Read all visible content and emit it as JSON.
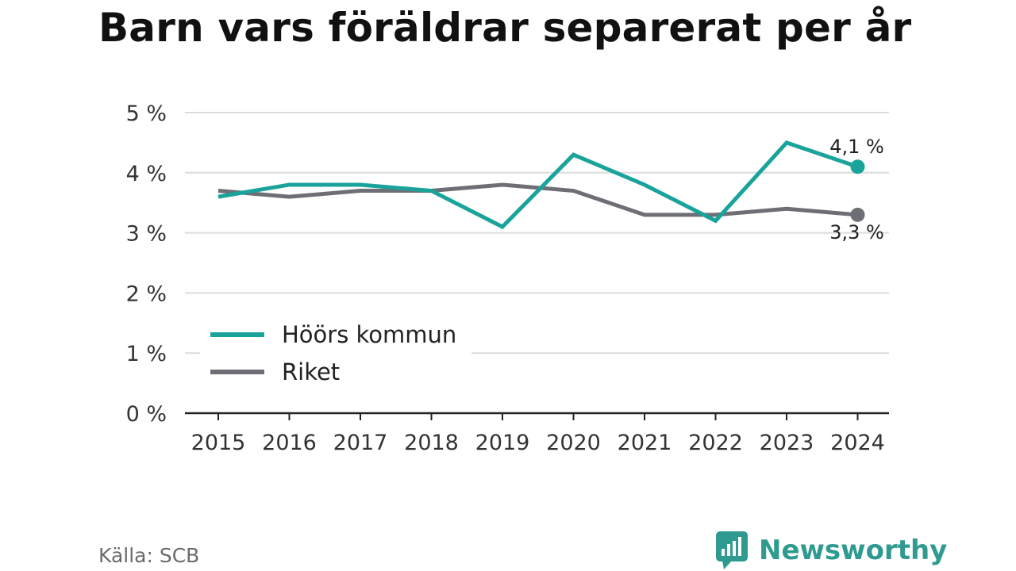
{
  "title": "Barn vars föräldrar separerat per år",
  "source": "Källa: SCB",
  "brand": {
    "name": "Newsworthy",
    "icon": "newsworthy-chart-bubble-icon",
    "color": "#2f9a90"
  },
  "chart_data": {
    "type": "line",
    "categories": [
      "2015",
      "2016",
      "2017",
      "2018",
      "2019",
      "2020",
      "2021",
      "2022",
      "2023",
      "2024"
    ],
    "series": [
      {
        "name": "Höörs kommun",
        "color": "#1aa39a",
        "values": [
          3.6,
          3.8,
          3.8,
          3.7,
          3.1,
          4.3,
          3.8,
          3.2,
          4.5,
          4.1
        ],
        "end_label": "4,1 %"
      },
      {
        "name": "Riket",
        "color": "#6e6e76",
        "values": [
          3.7,
          3.6,
          3.7,
          3.7,
          3.8,
          3.7,
          3.3,
          3.3,
          3.4,
          3.3
        ],
        "end_label": "3,3 %"
      }
    ],
    "y_ticks": [
      {
        "value": 0,
        "label": "0 %"
      },
      {
        "value": 1,
        "label": "1 %"
      },
      {
        "value": 2,
        "label": "2 %"
      },
      {
        "value": 3,
        "label": "3 %"
      },
      {
        "value": 4,
        "label": "4 %"
      },
      {
        "value": 5,
        "label": "5 %"
      }
    ],
    "ylim": [
      0,
      5
    ],
    "grid": true,
    "legend_position": "bottom-left",
    "xlabel": "",
    "ylabel": ""
  }
}
